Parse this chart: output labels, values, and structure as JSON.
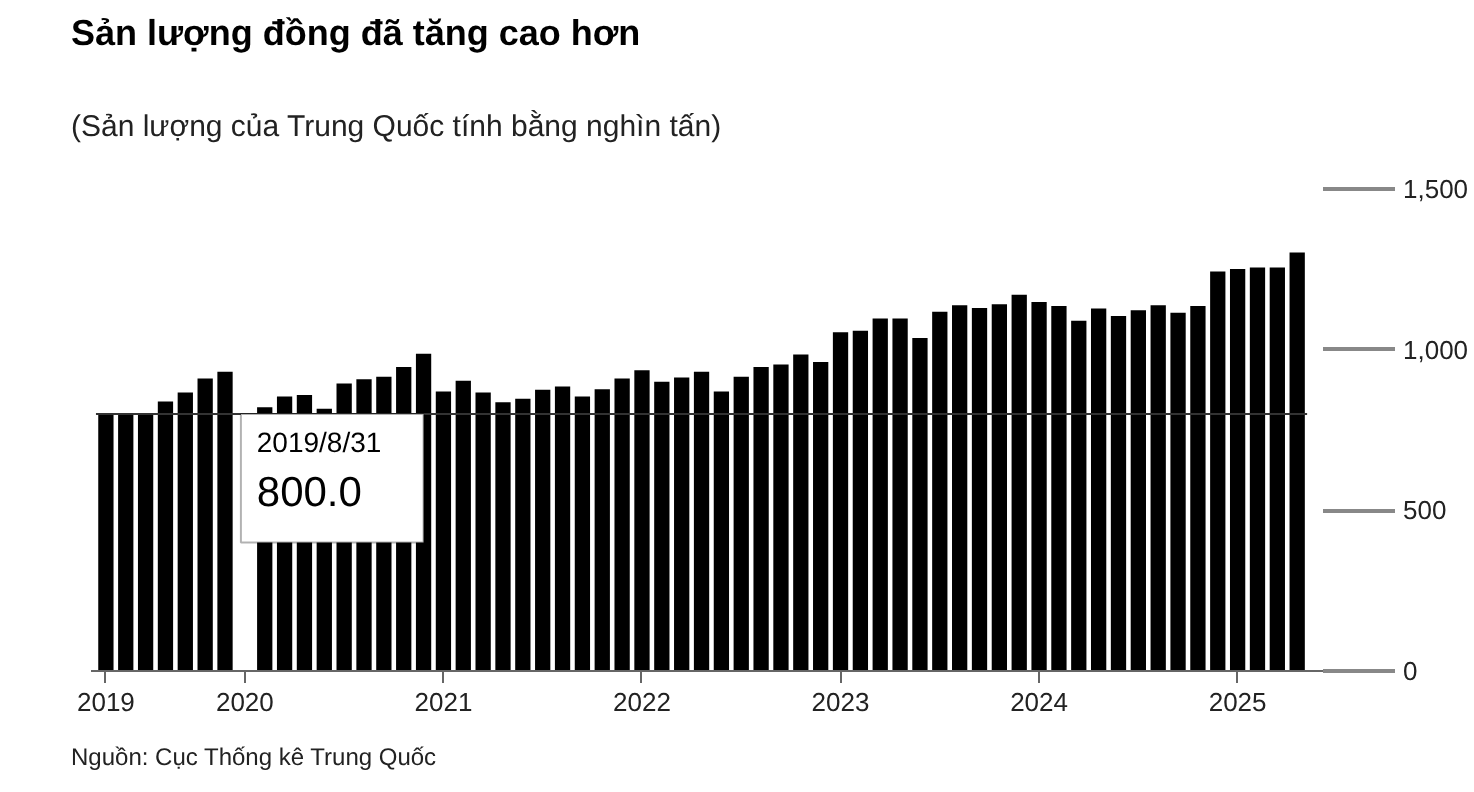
{
  "chart_data": {
    "type": "bar",
    "title": "Sản lượng đồng đã tăng cao hơn",
    "subtitle": "(Sản lượng của Trung Quốc tính bằng nghìn tấn)",
    "categories": [
      "2019",
      null,
      null,
      null,
      null,
      null,
      null,
      "2020",
      null,
      null,
      null,
      null,
      null,
      null,
      null,
      null,
      null,
      "2021",
      null,
      null,
      null,
      null,
      null,
      null,
      null,
      null,
      null,
      "2022",
      null,
      null,
      null,
      null,
      null,
      null,
      null,
      null,
      null,
      "2023",
      null,
      null,
      null,
      null,
      null,
      null,
      null,
      null,
      null,
      "2024",
      null,
      null,
      null,
      null,
      null,
      null,
      null,
      null,
      null,
      "2025",
      null,
      null,
      null
    ],
    "series": [
      {
        "color": "#000000",
        "values": [
          803,
          800,
          800,
          839,
          867,
          910,
          931,
          null,
          821,
          854,
          859,
          816,
          895,
          908,
          916,
          946,
          987,
          870,
          903,
          867,
          836,
          847,
          875,
          885,
          854,
          877,
          910,
          936,
          900,
          913,
          931,
          870,
          916,
          946,
          954,
          985,
          962,
          1054,
          1059,
          1097,
          1097,
          1036,
          1118,
          1138,
          1130,
          1141,
          1171,
          1148,
          1136,
          1090,
          1128,
          1105,
          1123,
          1138,
          1115,
          1136,
          1243,
          1251,
          1256,
          1256,
          1302
        ]
      }
    ],
    "ylim": [
      0,
      1500
    ],
    "yticks": [
      0,
      500,
      {
        "value": 1000,
        "label": "1,000"
      },
      {
        "value": 1500,
        "label": "1,500"
      }
    ],
    "grid": false,
    "ref_lines": [
      {
        "axis": "y",
        "value": 800,
        "color": "#333333"
      }
    ],
    "annotations": [
      {
        "text": "2019/8/31\n800.0",
        "y": 800
      },
      "Nguồn: Cục Thống kê Trung Quốc"
    ]
  }
}
